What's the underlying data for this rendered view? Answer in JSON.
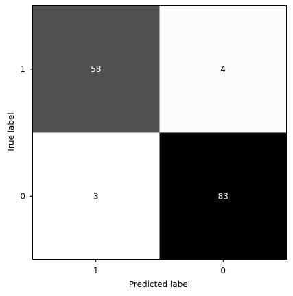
{
  "chart_data": {
    "type": "heatmap",
    "title": "",
    "xlabel": "Predicted label",
    "ylabel": "True label",
    "x_categories": [
      "1",
      "0"
    ],
    "y_categories": [
      "1",
      "0"
    ],
    "values": [
      [
        58,
        4
      ],
      [
        3,
        83
      ]
    ],
    "colormap": "gray_r",
    "value_range": [
      3,
      83
    ],
    "grid": false,
    "legend": "none"
  }
}
